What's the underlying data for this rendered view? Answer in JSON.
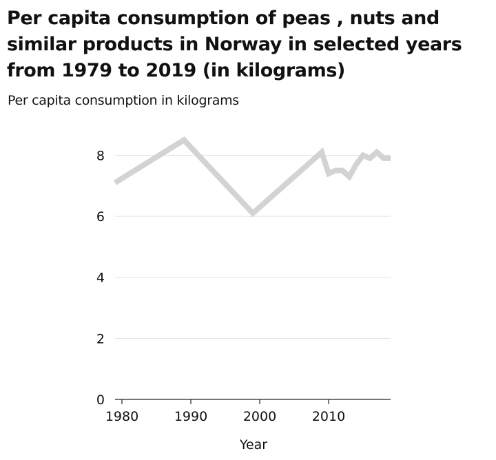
{
  "chart_data": {
    "type": "line",
    "title": "Per capita consumption of peas , nuts and similar products in Norway in selected years from 1979 to 2019 (in kilograms)",
    "xlabel": "Year",
    "ylabel": "Per capita consumption in kilograms",
    "xlim": [
      1979,
      2019
    ],
    "ylim": [
      0,
      8.8
    ],
    "x_ticks": [
      1980,
      1990,
      2000,
      2010
    ],
    "y_ticks": [
      0,
      2,
      4,
      6,
      8
    ],
    "grid": "horizontal",
    "line_color": "#d3d3d3",
    "series": [
      {
        "x": [
          1979,
          1989,
          1999,
          2009,
          2010,
          2011,
          2012,
          2013,
          2014,
          2015,
          2016,
          2017,
          2018,
          2019
        ],
        "values": [
          7.1,
          8.5,
          6.1,
          8.1,
          7.4,
          7.5,
          7.5,
          7.3,
          7.7,
          8.0,
          7.9,
          8.1,
          7.9,
          7.9
        ]
      }
    ]
  }
}
